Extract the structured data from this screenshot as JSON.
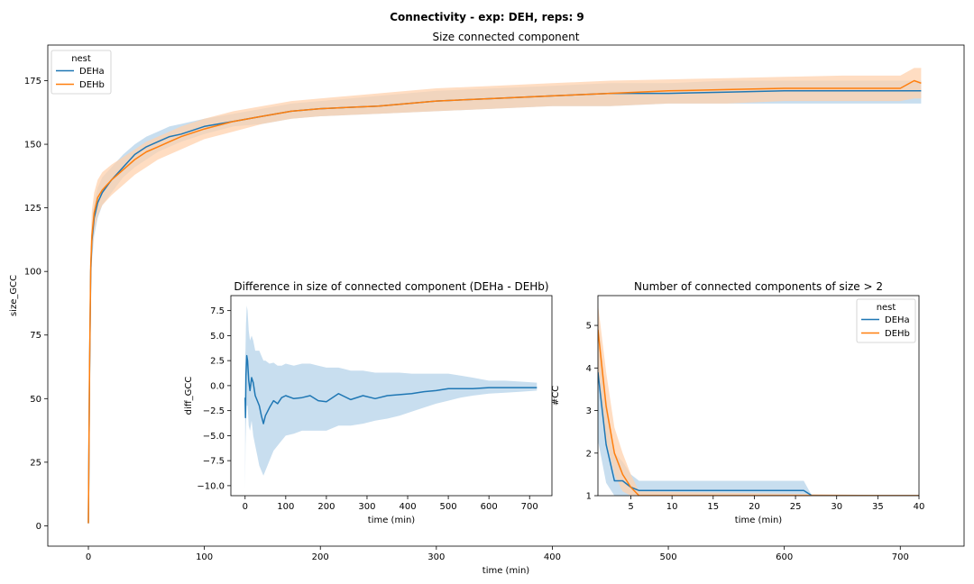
{
  "figure": {
    "suptitle": "Connectivity - exp: DEH, reps: 9",
    "colors": {
      "DEHa": "#1f77b4",
      "DEHb": "#ff7f0e",
      "DEHa_band": "#b6d3ea",
      "DEHb_band": "#ffd2ad"
    }
  },
  "chart_data": [
    {
      "id": "main",
      "type": "line",
      "title": "Size connected component",
      "xlabel": "time (min)",
      "ylabel": "size_GCC",
      "xlim": [
        -35,
        755
      ],
      "ylim": [
        -8,
        189
      ],
      "xticks": [
        0,
        100,
        200,
        300,
        400,
        500,
        600,
        700
      ],
      "yticks": [
        0,
        25,
        50,
        75,
        100,
        125,
        150,
        175
      ],
      "grid": false,
      "legend": {
        "title": "nest",
        "position": "top-left",
        "entries": [
          "DEHa",
          "DEHb"
        ]
      },
      "series": [
        {
          "name": "DEHa",
          "x": [
            0,
            1,
            2,
            3,
            5,
            8,
            12,
            20,
            30,
            40,
            50,
            60,
            70,
            80,
            100,
            125,
            150,
            175,
            200,
            250,
            300,
            350,
            400,
            450,
            500,
            550,
            600,
            650,
            700,
            718
          ],
          "y": [
            1,
            60,
            100,
            112,
            121,
            127,
            131,
            136,
            141,
            146,
            149,
            151,
            153,
            154,
            157,
            159,
            161,
            163,
            164,
            165,
            167,
            168,
            169,
            170,
            170,
            170.5,
            171,
            171,
            171,
            171
          ],
          "lower": [
            1,
            50,
            90,
            104,
            114,
            121,
            126,
            131,
            137,
            141,
            144,
            147,
            149,
            151,
            154,
            157,
            158,
            160,
            161,
            162,
            163,
            164,
            165,
            165,
            166,
            166,
            166,
            166,
            166,
            166
          ],
          "upper": [
            1,
            70,
            108,
            119,
            127,
            133,
            137,
            141,
            146,
            150,
            153,
            155,
            157,
            158,
            160,
            162,
            164,
            166,
            167,
            169,
            171,
            172,
            173,
            174,
            174,
            175,
            175,
            175,
            175,
            175
          ]
        },
        {
          "name": "DEHb",
          "x": [
            0,
            1,
            2,
            3,
            5,
            8,
            12,
            20,
            30,
            40,
            50,
            60,
            70,
            80,
            100,
            125,
            150,
            175,
            200,
            250,
            300,
            350,
            400,
            450,
            500,
            550,
            600,
            650,
            700,
            712,
            718
          ],
          "y": [
            1,
            62,
            102,
            114,
            123,
            129,
            132,
            136,
            140,
            144,
            147,
            149,
            151,
            153,
            156,
            159,
            161,
            163,
            164,
            165,
            167,
            168,
            169,
            170,
            171,
            171.5,
            172,
            172,
            172,
            175,
            174
          ],
          "lower": [
            1,
            52,
            92,
            106,
            116,
            122,
            126,
            130,
            134,
            138,
            141,
            144,
            146,
            148,
            152,
            155,
            158,
            160,
            161,
            162,
            163,
            164,
            165,
            165,
            166,
            166,
            167,
            167,
            167,
            168,
            168
          ],
          "upper": [
            1,
            72,
            112,
            124,
            131,
            136,
            139,
            142,
            145,
            148,
            151,
            153,
            155,
            157,
            160,
            163,
            165,
            167,
            168,
            170,
            172,
            173,
            174,
            175,
            175.5,
            176,
            176.5,
            177,
            177,
            180,
            180
          ]
        }
      ]
    },
    {
      "id": "inset-diff",
      "type": "line",
      "title": "Difference in size of connected component (DEHa - DEHb)",
      "xlabel": "time (min)",
      "ylabel": "diff_GCC",
      "xlim": [
        -35,
        755
      ],
      "ylim": [
        -11,
        9
      ],
      "xticks": [
        0,
        100,
        200,
        300,
        400,
        500,
        600,
        700
      ],
      "yticks": [
        -10.0,
        -7.5,
        -5.0,
        -2.5,
        0.0,
        2.5,
        5.0,
        7.5
      ],
      "tick_labels": {
        "x": [
          "0",
          "100",
          "200",
          "300",
          "400",
          "500",
          "600",
          "700"
        ],
        "y": [
          "−10.0",
          "−7.5",
          "−5.0",
          "−2.5",
          "0.0",
          "2.5",
          "5.0",
          "7.5"
        ]
      },
      "grid": false,
      "series": [
        {
          "name": "DEHa - DEHb",
          "x": [
            0,
            1,
            2,
            4,
            6,
            9,
            12,
            16,
            20,
            25,
            30,
            35,
            40,
            45,
            50,
            60,
            70,
            80,
            90,
            100,
            120,
            140,
            160,
            180,
            200,
            230,
            260,
            290,
            320,
            350,
            380,
            410,
            440,
            470,
            500,
            530,
            560,
            600,
            640,
            680,
            718
          ],
          "y": [
            -1.2,
            -3.2,
            1.0,
            3.0,
            2.5,
            0.5,
            -0.5,
            0.8,
            0.3,
            -1.0,
            -1.5,
            -2.0,
            -3.0,
            -3.8,
            -3.0,
            -2.2,
            -1.5,
            -1.8,
            -1.2,
            -1.0,
            -1.3,
            -1.2,
            -1.0,
            -1.5,
            -1.6,
            -0.8,
            -1.4,
            -1.0,
            -1.3,
            -1.0,
            -0.9,
            -0.8,
            -0.6,
            -0.5,
            -0.3,
            -0.3,
            -0.3,
            -0.2,
            -0.2,
            -0.2,
            -0.2
          ],
          "lower": [
            -10.3,
            -6.0,
            -4.0,
            -2.0,
            -2.0,
            -4.0,
            -4.5,
            -3.5,
            -5.0,
            -6.0,
            -7.0,
            -8.0,
            -8.5,
            -9.0,
            -8.5,
            -7.5,
            -6.5,
            -6.0,
            -5.5,
            -5.0,
            -4.8,
            -4.5,
            -4.5,
            -4.5,
            -4.5,
            -4.0,
            -4.0,
            -3.8,
            -3.5,
            -3.3,
            -3.0,
            -2.6,
            -2.2,
            -1.8,
            -1.5,
            -1.2,
            -1.0,
            -0.8,
            -0.7,
            -0.6,
            -0.5
          ],
          "upper": [
            3.0,
            3.5,
            6.0,
            8.0,
            7.5,
            5.5,
            4.5,
            5.0,
            4.5,
            3.5,
            3.5,
            3.5,
            3.0,
            2.5,
            2.5,
            2.2,
            2.3,
            2.0,
            2.0,
            2.2,
            2.0,
            2.2,
            2.2,
            2.0,
            1.8,
            1.8,
            1.5,
            1.5,
            1.3,
            1.3,
            1.3,
            1.2,
            1.2,
            1.2,
            1.2,
            1.0,
            0.8,
            0.5,
            0.5,
            0.4,
            0.3
          ]
        }
      ]
    },
    {
      "id": "inset-cc",
      "type": "line",
      "title": "Number of connected components of size > 2",
      "xlabel": "time (min)",
      "ylabel": "#CC",
      "xlim": [
        1,
        40
      ],
      "ylim": [
        1,
        5.7
      ],
      "xticks": [
        5,
        10,
        15,
        20,
        25,
        30,
        35,
        40
      ],
      "yticks": [
        1,
        2,
        3,
        4,
        5
      ],
      "grid": false,
      "legend": {
        "title": "nest",
        "position": "top-right",
        "entries": [
          "DEHa",
          "DEHb"
        ]
      },
      "series": [
        {
          "name": "DEHa",
          "x": [
            1,
            2,
            3,
            4,
            5,
            6,
            7,
            26,
            27,
            40
          ],
          "y": [
            3.9,
            2.2,
            1.35,
            1.35,
            1.2,
            1.12,
            1.12,
            1.12,
            1.0,
            1.0
          ],
          "lower": [
            2.3,
            1.3,
            1.0,
            1.0,
            1.0,
            1.0,
            1.0,
            1.0,
            1.0,
            1.0
          ],
          "upper": [
            5.2,
            3.3,
            2.0,
            1.8,
            1.5,
            1.35,
            1.35,
            1.35,
            1.0,
            1.0
          ]
        },
        {
          "name": "DEHb",
          "x": [
            1,
            2,
            3,
            4,
            5,
            6,
            40
          ],
          "y": [
            4.9,
            3.1,
            2.0,
            1.5,
            1.2,
            1.0,
            1.0
          ],
          "lower": [
            3.8,
            2.3,
            1.5,
            1.1,
            1.0,
            1.0,
            1.0
          ],
          "upper": [
            5.5,
            3.9,
            2.6,
            2.0,
            1.5,
            1.1,
            1.0
          ]
        }
      ]
    }
  ]
}
